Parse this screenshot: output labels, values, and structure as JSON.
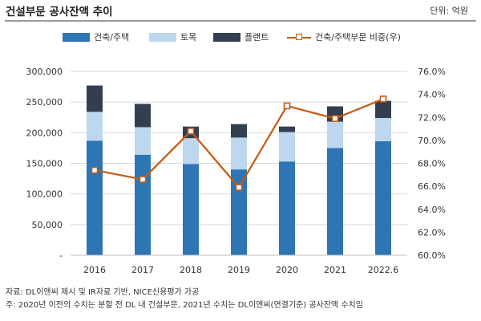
{
  "header": {
    "title": "건설부문 공사잔액 추이",
    "unit": "단위: 억원"
  },
  "legend": [
    {
      "label": "건축/주택",
      "kind": "bar",
      "color": "#2e75b6"
    },
    {
      "label": "토목",
      "kind": "bar",
      "color": "#bdd7ee"
    },
    {
      "label": "플랜트",
      "kind": "bar",
      "color": "#333f50"
    },
    {
      "label": "건축/주택부문 비중(우)",
      "kind": "line",
      "color": "#c55a11"
    }
  ],
  "chart_data": {
    "type": "bar",
    "stacked": true,
    "title": "건설부문 공사잔액 추이",
    "categories": [
      "2016",
      "2017",
      "2018",
      "2019",
      "2020",
      "2021",
      "2022.6"
    ],
    "series": [
      {
        "name": "건축/주택",
        "axis": "left",
        "color": "#2e75b6",
        "values": [
          187000,
          164000,
          149000,
          140000,
          153000,
          175000,
          186000
        ]
      },
      {
        "name": "토목",
        "axis": "left",
        "color": "#bdd7ee",
        "values": [
          47000,
          45000,
          42000,
          52000,
          48000,
          43000,
          38000
        ]
      },
      {
        "name": "플랜트",
        "axis": "left",
        "color": "#333f50",
        "values": [
          43000,
          38000,
          19000,
          22000,
          9000,
          25000,
          28000
        ]
      },
      {
        "name": "건축/주택부문 비중(우)",
        "axis": "right",
        "type": "line",
        "color": "#c55a11",
        "values": [
          67.4,
          66.6,
          70.8,
          65.9,
          73.0,
          71.9,
          73.6
        ]
      }
    ],
    "y_left": {
      "ylim": [
        0,
        300000
      ],
      "ticks": [
        0,
        50000,
        100000,
        150000,
        200000,
        250000,
        300000
      ],
      "tick_labels": [
        "-",
        "50,000",
        "100,000",
        "150,000",
        "200,000",
        "250,000",
        "300,000"
      ]
    },
    "y_right": {
      "ylim": [
        60.0,
        76.0
      ],
      "ticks": [
        60.0,
        62.0,
        64.0,
        66.0,
        68.0,
        70.0,
        72.0,
        74.0,
        76.0
      ],
      "tick_labels": [
        "60.0%",
        "62.0%",
        "64.0%",
        "66.0%",
        "68.0%",
        "70.0%",
        "72.0%",
        "74.0%",
        "76.0%"
      ]
    },
    "grid": true,
    "legend_position": "top"
  },
  "notes": {
    "source": "자료: DL이앤씨 제시 및 IR자료 기반, NICE신용평가 가공",
    "note": "주: 2020년 이전의 수치는 분할 전 DL 내 건설부문, 2021년 수치는 DL이앤씨(연결기준) 공사잔액 수치임"
  }
}
